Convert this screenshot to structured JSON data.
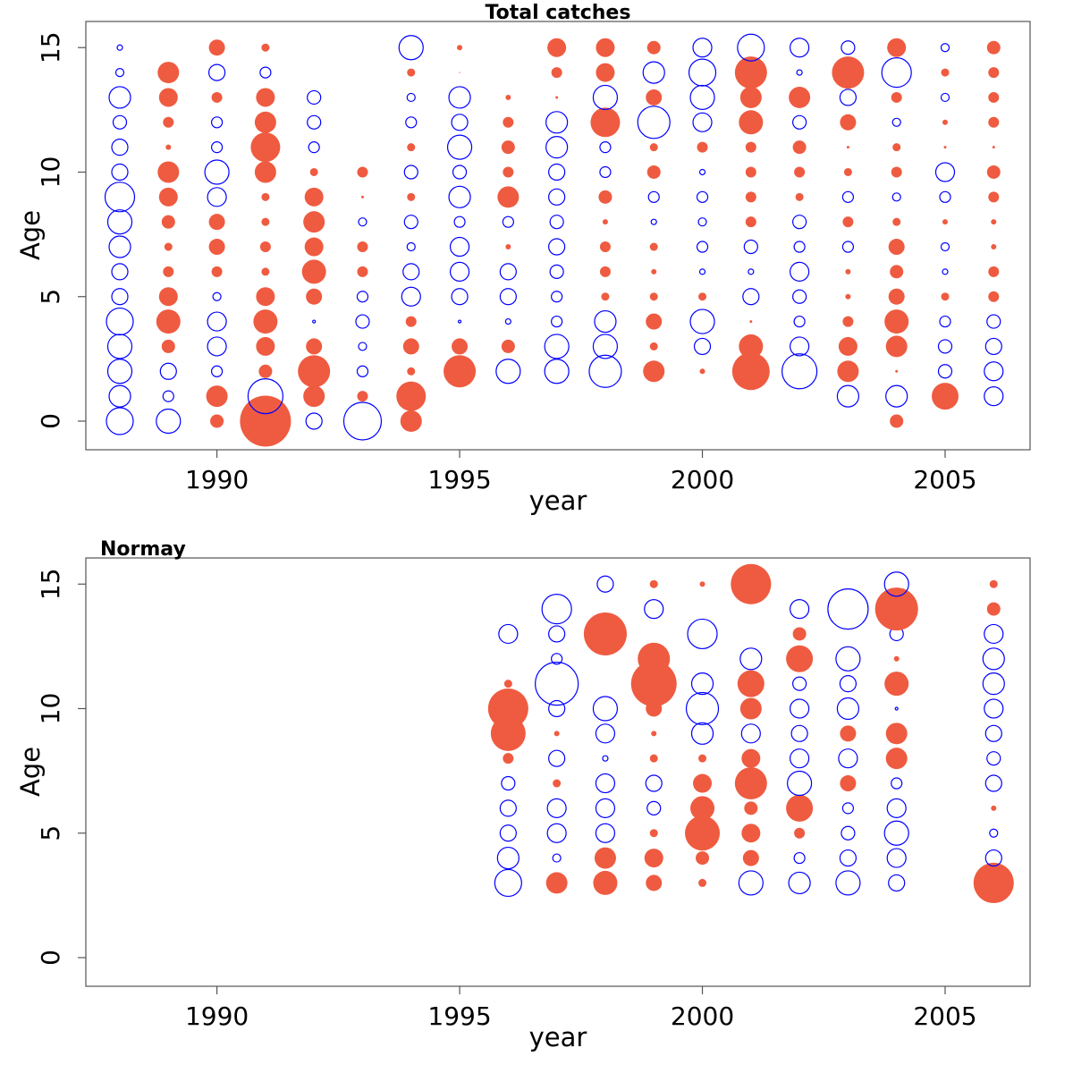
{
  "colors": {
    "positive": "#ef5b40",
    "negative": "#0000ff",
    "axis": "#555555"
  },
  "chart_data": [
    {
      "type": "scatter",
      "subtype": "bubble",
      "title": "Total catches",
      "xlabel": "year",
      "ylabel": "Age",
      "xlim": [
        1987.3,
        2006.75
      ],
      "ylim": [
        -1.15,
        16.05
      ],
      "xticks": [
        1990,
        1995,
        2000,
        2005
      ],
      "yticks": [
        0,
        5,
        10,
        15
      ],
      "legend": "none",
      "size_encoding": "radius relative to max absolute residual; filled = positive, hollow = negative",
      "series": [
        {
          "name": "1988",
          "x": 1988,
          "values": [
            -0.5,
            -0.4,
            -0.45,
            -0.45,
            -0.5,
            -0.3,
            -0.3,
            -0.4,
            -0.45,
            -0.55,
            -0.3,
            -0.3,
            -0.25,
            -0.4,
            -0.15,
            -0.1
          ]
        },
        {
          "name": "1989",
          "x": 1989,
          "values": [
            -0.45,
            -0.2,
            -0.3,
            0.25,
            0.45,
            0.35,
            0.2,
            0.15,
            0.25,
            0.35,
            0.4,
            0.1,
            0.2,
            0.35,
            0.4,
            null
          ]
        },
        {
          "name": "1990",
          "x": 1990,
          "values": [
            0.25,
            0.4,
            -0.2,
            -0.35,
            -0.35,
            -0.15,
            0.2,
            0.3,
            0.3,
            -0.35,
            -0.45,
            -0.2,
            -0.2,
            0.2,
            -0.3,
            0.3
          ]
        },
        {
          "name": "1991",
          "x": 1991,
          "values": [
            0.95,
            -0.65,
            0.25,
            0.35,
            0.45,
            0.35,
            0.15,
            0.2,
            0.15,
            0.15,
            0.4,
            0.55,
            0.4,
            0.35,
            -0.2,
            0.15
          ]
        },
        {
          "name": "1992",
          "x": 1992,
          "values": [
            -0.3,
            0.4,
            0.6,
            0.3,
            -0.05,
            0.3,
            0.45,
            0.35,
            0.4,
            0.35,
            0.15,
            -0.2,
            -0.25,
            -0.25,
            null,
            null
          ]
        },
        {
          "name": "1993",
          "x": 1993,
          "values": [
            -0.7,
            0.2,
            -0.2,
            -0.15,
            -0.25,
            -0.2,
            0.2,
            0.2,
            -0.15,
            0.05,
            0.2,
            null,
            null,
            null,
            null,
            null
          ]
        },
        {
          "name": "1994",
          "x": 1994,
          "values": [
            0.4,
            0.55,
            0.15,
            0.3,
            0.2,
            -0.35,
            -0.3,
            -0.15,
            -0.25,
            0.15,
            -0.25,
            0.15,
            -0.2,
            -0.15,
            0.15,
            -0.45
          ]
        },
        {
          "name": "1995",
          "x": 1995,
          "values": [
            null,
            null,
            0.6,
            0.3,
            -0.05,
            -0.3,
            -0.35,
            -0.35,
            -0.2,
            -0.4,
            -0.25,
            -0.45,
            -0.3,
            -0.4,
            0.02,
            0.1
          ]
        },
        {
          "name": "1996",
          "x": 1996,
          "values": [
            null,
            null,
            -0.45,
            0.25,
            -0.1,
            -0.3,
            -0.3,
            0.1,
            -0.2,
            0.4,
            0.2,
            0.25,
            0.2,
            0.1,
            null,
            null
          ]
        },
        {
          "name": "1997",
          "x": 1997,
          "values": [
            null,
            null,
            -0.45,
            -0.45,
            -0.2,
            -0.2,
            -0.25,
            -0.3,
            -0.25,
            -0.3,
            -0.3,
            -0.4,
            -0.4,
            0.05,
            0.2,
            0.35
          ]
        },
        {
          "name": "1998",
          "x": 1998,
          "values": [
            null,
            null,
            -0.6,
            -0.45,
            -0.4,
            0.15,
            0.2,
            0.2,
            0.1,
            0.25,
            -0.2,
            -0.2,
            0.55,
            -0.45,
            0.35,
            0.35
          ]
        },
        {
          "name": "1999",
          "x": 1999,
          "values": [
            null,
            null,
            0.4,
            0.15,
            0.3,
            0.15,
            0.1,
            0.15,
            -0.1,
            -0.2,
            0.25,
            0.15,
            -0.6,
            0.3,
            -0.4,
            0.25
          ]
        },
        {
          "name": "2000",
          "x": 2000,
          "values": [
            null,
            null,
            0.1,
            -0.3,
            -0.45,
            0.15,
            -0.1,
            -0.2,
            -0.15,
            -0.2,
            -0.1,
            0.2,
            -0.35,
            -0.45,
            -0.5,
            -0.35
          ]
        },
        {
          "name": "2001",
          "x": 2001,
          "values": [
            null,
            null,
            0.7,
            0.45,
            0.05,
            -0.3,
            -0.1,
            -0.25,
            0.2,
            0.2,
            0.2,
            0.2,
            0.45,
            0.4,
            0.6,
            -0.5
          ]
        },
        {
          "name": "2002",
          "x": 2002,
          "values": [
            null,
            null,
            -0.65,
            -0.35,
            -0.2,
            -0.25,
            -0.35,
            -0.2,
            -0.25,
            0.15,
            0.2,
            0.25,
            -0.25,
            0.4,
            -0.1,
            -0.35
          ]
        },
        {
          "name": "2003",
          "x": 2003,
          "values": [
            null,
            -0.4,
            0.4,
            0.35,
            0.2,
            0.1,
            0.1,
            -0.2,
            0.2,
            -0.2,
            0.15,
            0.05,
            0.3,
            -0.3,
            0.6,
            -0.25
          ]
        },
        {
          "name": "2004",
          "x": 2004,
          "values": [
            0.25,
            -0.4,
            0.05,
            0.4,
            0.45,
            0.3,
            0.25,
            0.3,
            0.15,
            -0.15,
            0.2,
            0.15,
            -0.15,
            0.2,
            -0.55,
            0.35
          ]
        },
        {
          "name": "2005",
          "x": 2005,
          "values": [
            null,
            0.5,
            -0.25,
            -0.25,
            -0.2,
            0.15,
            -0.1,
            -0.15,
            0.1,
            -0.2,
            -0.35,
            0.05,
            0.1,
            -0.15,
            0.15,
            -0.15
          ]
        },
        {
          "name": "2006",
          "x": 2006,
          "values": [
            null,
            -0.35,
            -0.35,
            -0.3,
            -0.25,
            0.2,
            0.2,
            0.1,
            0.1,
            0.2,
            0.25,
            0.05,
            0.2,
            0.2,
            0.2,
            0.25
          ]
        }
      ]
    },
    {
      "type": "scatter",
      "subtype": "bubble",
      "title": "Normay",
      "xlabel": "year",
      "ylabel": "Age",
      "xlim": [
        1987.3,
        2006.75
      ],
      "ylim": [
        -1.15,
        16.05
      ],
      "xticks": [
        1990,
        1995,
        2000,
        2005
      ],
      "yticks": [
        0,
        5,
        10,
        15
      ],
      "legend": "none",
      "size_encoding": "radius relative to max absolute residual; filled = positive, hollow = negative",
      "series": [
        {
          "name": "1996",
          "x": 1996,
          "values": [
            null,
            null,
            null,
            -0.5,
            -0.4,
            -0.3,
            -0.3,
            -0.25,
            0.2,
            0.65,
            0.75,
            0.15,
            null,
            -0.35,
            null,
            null
          ]
        },
        {
          "name": "1997",
          "x": 1997,
          "values": [
            null,
            null,
            null,
            0.4,
            -0.15,
            -0.35,
            -0.35,
            0.15,
            -0.3,
            0.1,
            -0.3,
            -0.8,
            -0.2,
            -0.3,
            -0.55,
            null
          ]
        },
        {
          "name": "1998",
          "x": 1998,
          "values": [
            null,
            null,
            null,
            0.45,
            0.4,
            -0.35,
            -0.35,
            -0.35,
            -0.1,
            -0.35,
            -0.45,
            null,
            null,
            0.8,
            null,
            -0.3
          ]
        },
        {
          "name": "1999",
          "x": 1999,
          "values": [
            null,
            null,
            null,
            0.3,
            0.35,
            0.15,
            -0.25,
            -0.3,
            0.15,
            0.1,
            0.3,
            0.85,
            0.6,
            null,
            -0.35,
            0.15
          ]
        },
        {
          "name": "2000",
          "x": 2000,
          "values": [
            null,
            null,
            null,
            0.15,
            0.25,
            0.65,
            0.45,
            0.35,
            0.15,
            -0.4,
            -0.6,
            -0.4,
            null,
            -0.55,
            null,
            0.1
          ]
        },
        {
          "name": "2001",
          "x": 2001,
          "values": [
            null,
            null,
            null,
            -0.45,
            0.3,
            0.35,
            0.25,
            0.6,
            0.35,
            -0.35,
            0.4,
            0.5,
            -0.4,
            null,
            null,
            0.75
          ]
        },
        {
          "name": "2002",
          "x": 2002,
          "values": [
            null,
            null,
            null,
            -0.4,
            -0.2,
            0.2,
            0.5,
            -0.45,
            -0.35,
            -0.3,
            -0.35,
            -0.25,
            0.5,
            0.25,
            -0.35,
            null
          ]
        },
        {
          "name": "2003",
          "x": 2003,
          "values": [
            null,
            null,
            null,
            -0.45,
            -0.3,
            -0.25,
            -0.2,
            0.3,
            -0.35,
            0.3,
            -0.4,
            -0.3,
            -0.45,
            null,
            -0.75,
            null
          ]
        },
        {
          "name": "2004",
          "x": 2004,
          "values": [
            null,
            null,
            null,
            -0.3,
            -0.35,
            -0.45,
            -0.35,
            -0.2,
            0.4,
            0.4,
            -0.05,
            0.45,
            0.1,
            -0.25,
            0.8,
            -0.45
          ]
        },
        {
          "name": "2006",
          "x": 2006,
          "values": [
            null,
            null,
            null,
            0.75,
            -0.3,
            -0.15,
            0.1,
            -0.3,
            -0.25,
            -0.3,
            -0.35,
            -0.4,
            -0.4,
            -0.35,
            0.25,
            0.15
          ]
        }
      ]
    }
  ]
}
